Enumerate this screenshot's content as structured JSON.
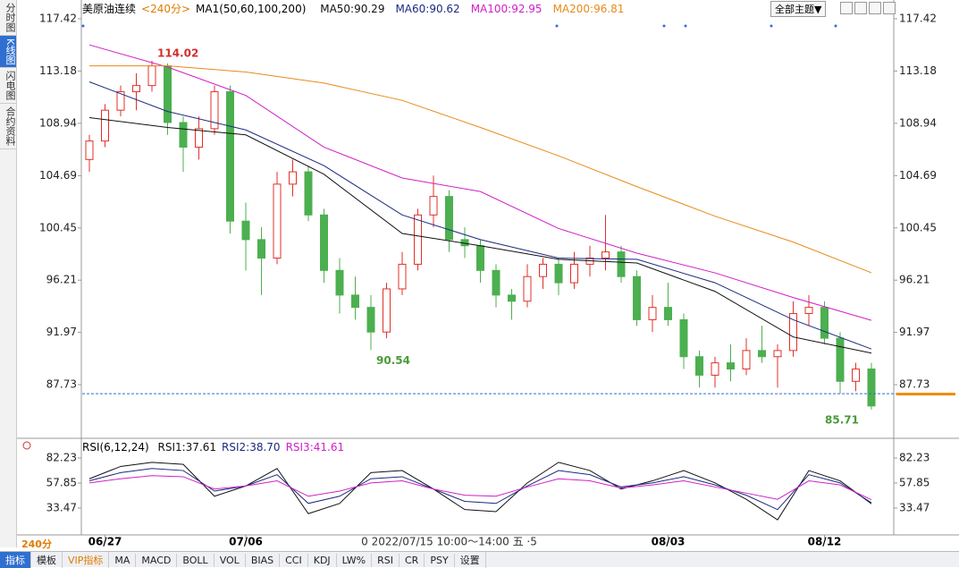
{
  "ui": {
    "side_tabs": [
      "分时图",
      "K线图",
      "闪电图",
      "合约资料"
    ],
    "theme": "全部主题▼",
    "period_badge": "240分",
    "toolbar": [
      "指标",
      "模板",
      "VIP指标",
      "MA",
      "MACD",
      "BOLL",
      "VOL",
      "BIAS",
      "CCI",
      "KDJ",
      "LW%",
      "RSI",
      "CR",
      "PSY",
      "设置"
    ]
  },
  "chart_data": [
    {
      "type": "candlestick",
      "title": "美原油连续",
      "period": "<240分>",
      "indicator": "MA1(50,60,100,200)",
      "x": [
        0,
        1,
        2,
        3,
        4,
        5,
        6,
        7,
        8,
        9,
        10,
        11,
        12,
        13,
        14,
        15,
        16,
        17,
        18,
        19,
        20,
        21,
        22,
        23,
        24,
        25,
        26,
        27,
        28,
        29,
        30,
        31,
        32,
        33,
        34,
        35,
        36,
        37,
        38,
        39,
        40,
        41,
        42,
        43,
        44,
        45,
        46,
        47,
        48,
        49,
        50
      ],
      "open": [
        106,
        107.5,
        110,
        111.5,
        112,
        113.6,
        109,
        107,
        108.5,
        111.5,
        101,
        99.5,
        98,
        104,
        105,
        101.5,
        97,
        95,
        94,
        92,
        95.5,
        97.5,
        101.5,
        103,
        99.5,
        99,
        97,
        95,
        94.5,
        96.5,
        97.5,
        96,
        97.5,
        98,
        98.5,
        96.5,
        93,
        94,
        93,
        90,
        88.5,
        89.5,
        89,
        90.5,
        90,
        90.5,
        93.5,
        94,
        91.5,
        88,
        89
      ],
      "high": [
        108,
        110.5,
        112,
        113,
        114.02,
        113.8,
        109.5,
        109.5,
        112,
        112,
        102.5,
        100.5,
        105,
        106,
        105.5,
        102,
        98,
        96.5,
        95,
        96,
        98.5,
        102,
        104.7,
        103.5,
        100.5,
        99.5,
        97.5,
        95.5,
        97.5,
        98,
        98,
        98.5,
        99,
        101.5,
        99,
        97,
        95,
        96,
        93.5,
        90.5,
        90,
        91,
        91.5,
        92.5,
        91,
        94.5,
        95,
        94.5,
        92,
        89.5,
        89.5
      ],
      "low": [
        105,
        107,
        109.5,
        110,
        111.5,
        108,
        105,
        106,
        108,
        100,
        97,
        95,
        97.5,
        103,
        101,
        96,
        93.5,
        93,
        90.54,
        91.5,
        95,
        97,
        100.5,
        98.5,
        98,
        96,
        94,
        93,
        94,
        95.5,
        95,
        95.5,
        96.5,
        97,
        96,
        92.5,
        92,
        92.5,
        89,
        87.5,
        87.5,
        88,
        88.5,
        89.5,
        87.5,
        90,
        92.5,
        91,
        87,
        87.2,
        85.71
      ],
      "close": [
        107.5,
        110,
        111.5,
        112,
        113.6,
        109,
        107,
        108.5,
        111.5,
        101,
        99.5,
        98,
        104,
        105,
        101.5,
        97,
        95,
        94,
        92,
        95.5,
        97.5,
        101.5,
        103,
        99.5,
        99,
        97,
        95,
        94.5,
        96.5,
        97.5,
        96,
        97.5,
        98,
        98.5,
        96.5,
        93,
        94,
        93,
        90,
        88.5,
        89.5,
        89,
        90.5,
        90,
        90.5,
        93.5,
        94,
        91.5,
        88,
        89,
        86
      ],
      "up_color": "#e0302a",
      "down_color": "#4caf50",
      "series": [
        {
          "name": "MA50:90.29",
          "color": "#111111",
          "x": [
            0,
            5,
            10,
            15,
            20,
            25,
            30,
            35,
            40,
            45,
            50
          ],
          "values": [
            109.4,
            108.6,
            108.0,
            104.8,
            100.0,
            99.0,
            97.9,
            97.6,
            95.3,
            91.6,
            90.29
          ]
        },
        {
          "name": "MA60:90.62",
          "color": "#1a2a80",
          "x": [
            0,
            5,
            10,
            15,
            20,
            25,
            30,
            35,
            40,
            45,
            50
          ],
          "values": [
            112.3,
            109.9,
            108.4,
            105.5,
            101.5,
            99.5,
            98.0,
            97.9,
            96.0,
            93.0,
            90.62
          ]
        },
        {
          "name": "MA100:92.95",
          "color": "#d020c8",
          "x": [
            0,
            5,
            10,
            15,
            20,
            25,
            30,
            35,
            40,
            45,
            50
          ],
          "values": [
            115.3,
            113.5,
            111.2,
            107.0,
            104.5,
            103.4,
            100.4,
            98.4,
            96.8,
            94.8,
            92.95
          ]
        },
        {
          "name": "MA200:96.81",
          "color": "#e88a1a",
          "x": [
            0,
            5,
            10,
            15,
            20,
            25,
            30,
            35,
            40,
            45,
            50
          ],
          "values": [
            113.6,
            113.6,
            113.1,
            112.2,
            110.8,
            108.6,
            106.3,
            103.8,
            101.4,
            99.3,
            96.81
          ]
        }
      ],
      "annotations": [
        {
          "x": 4,
          "value": 114.02,
          "color": "#d03030"
        },
        {
          "x": 18,
          "value": 90.54,
          "color": "#4a9a3a"
        },
        {
          "x": 50,
          "value": 85.71,
          "color": "#4a9a3a"
        }
      ],
      "price_line": 87.0,
      "ylim": [
        83.74,
        118.58
      ],
      "yticks": [
        117.42,
        113.18,
        108.94,
        104.69,
        100.45,
        96.21,
        91.97,
        87.73
      ],
      "xlim": [
        0,
        50
      ],
      "xticks": [
        {
          "value": 1,
          "label": "06/27"
        },
        {
          "value": 10,
          "label": "07/06"
        },
        {
          "value": 37,
          "label": "08/03"
        },
        {
          "value": 47,
          "label": "08/12"
        }
      ],
      "crosshair": {
        "value": 23,
        "label": "0 2022/07/15 10:00～14:00 五 ·5"
      },
      "grid": false
    },
    {
      "type": "line",
      "title": "RSI(6,12,24)",
      "series": [
        {
          "name": "RSI1:37.61",
          "color": "#111111",
          "x": [
            0,
            2,
            4,
            6,
            8,
            10,
            12,
            14,
            16,
            18,
            20,
            22,
            24,
            26,
            28,
            30,
            32,
            34,
            36,
            38,
            40,
            42,
            44,
            46,
            48,
            50
          ],
          "values": [
            62,
            74,
            78,
            76,
            45,
            55,
            72,
            28,
            38,
            68,
            70,
            52,
            32,
            30,
            58,
            78,
            70,
            52,
            60,
            70,
            58,
            42,
            22,
            70,
            60,
            37.61
          ]
        },
        {
          "name": "RSI2:38.70",
          "color": "#1a2a80",
          "x": [
            0,
            2,
            4,
            6,
            8,
            10,
            12,
            14,
            16,
            18,
            20,
            22,
            24,
            26,
            28,
            30,
            32,
            34,
            36,
            38,
            40,
            42,
            44,
            46,
            48,
            50
          ],
          "values": [
            60,
            68,
            72,
            70,
            50,
            55,
            66,
            38,
            45,
            62,
            64,
            52,
            40,
            38,
            55,
            70,
            66,
            54,
            58,
            64,
            56,
            46,
            32,
            66,
            58,
            38.7
          ]
        },
        {
          "name": "RSI3:41.61",
          "color": "#d020c8",
          "x": [
            0,
            2,
            4,
            6,
            8,
            10,
            12,
            14,
            16,
            18,
            20,
            22,
            24,
            26,
            28,
            30,
            32,
            34,
            36,
            38,
            40,
            42,
            44,
            46,
            48,
            50
          ],
          "values": [
            58,
            62,
            65,
            64,
            52,
            55,
            60,
            45,
            50,
            58,
            60,
            52,
            46,
            45,
            54,
            62,
            60,
            53,
            56,
            60,
            54,
            48,
            42,
            60,
            56,
            41.61
          ]
        }
      ],
      "ylim": [
        9.95,
        92.7
      ],
      "yticks": [
        82.23,
        57.85,
        33.47
      ],
      "xlim": [
        0,
        50
      ],
      "grid": false
    }
  ]
}
